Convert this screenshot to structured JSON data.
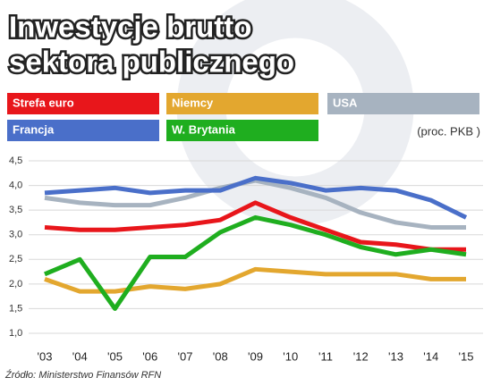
{
  "chart_data": {
    "type": "line",
    "title_lines": [
      "Inwestycje brutto",
      "sektora publicznego"
    ],
    "unit_label": "(proc. PKB )",
    "source": "Źródło: Ministerstwo Finansów RFN",
    "categories": [
      "'03",
      "'04",
      "'05",
      "'06",
      "'07",
      "'08",
      "'09",
      "'10",
      "'11",
      "'12",
      "'13",
      "'14",
      "'15"
    ],
    "series": [
      {
        "name": "Strefa euro",
        "color": "#e8161b",
        "values": [
          3.15,
          3.1,
          3.1,
          3.15,
          3.2,
          3.3,
          3.65,
          3.35,
          3.1,
          2.85,
          2.8,
          2.7,
          2.7
        ]
      },
      {
        "name": "Niemcy",
        "color": "#e3a72f",
        "values": [
          2.1,
          1.85,
          1.85,
          1.95,
          1.9,
          2.0,
          2.3,
          2.25,
          2.2,
          2.2,
          2.2,
          2.1,
          2.1
        ]
      },
      {
        "name": "USA",
        "color": "#a7b3c0",
        "values": [
          3.75,
          3.65,
          3.6,
          3.6,
          3.75,
          3.95,
          4.1,
          3.95,
          3.75,
          3.45,
          3.25,
          3.15,
          3.15
        ]
      },
      {
        "name": "Francja",
        "color": "#4a6fc9",
        "values": [
          3.85,
          3.9,
          3.95,
          3.85,
          3.9,
          3.9,
          4.15,
          4.05,
          3.9,
          3.95,
          3.9,
          3.7,
          3.35
        ]
      },
      {
        "name": "W. Brytania",
        "color": "#1fae1f",
        "values": [
          2.2,
          2.5,
          1.5,
          2.55,
          2.55,
          3.05,
          3.35,
          3.2,
          3.0,
          2.75,
          2.6,
          2.7,
          2.6
        ]
      }
    ],
    "ylim": [
      1.0,
      4.5
    ],
    "yticks": [
      {
        "value": 1.0,
        "label": "1,0"
      },
      {
        "value": 1.5,
        "label": "1,5"
      },
      {
        "value": 2.0,
        "label": "2,0"
      },
      {
        "value": 2.5,
        "label": "2,5"
      },
      {
        "value": 3.0,
        "label": "3,0"
      },
      {
        "value": 3.5,
        "label": "3,5"
      },
      {
        "value": 4.0,
        "label": "4,0"
      },
      {
        "value": 4.5,
        "label": "4,5"
      }
    ],
    "grid": true
  }
}
